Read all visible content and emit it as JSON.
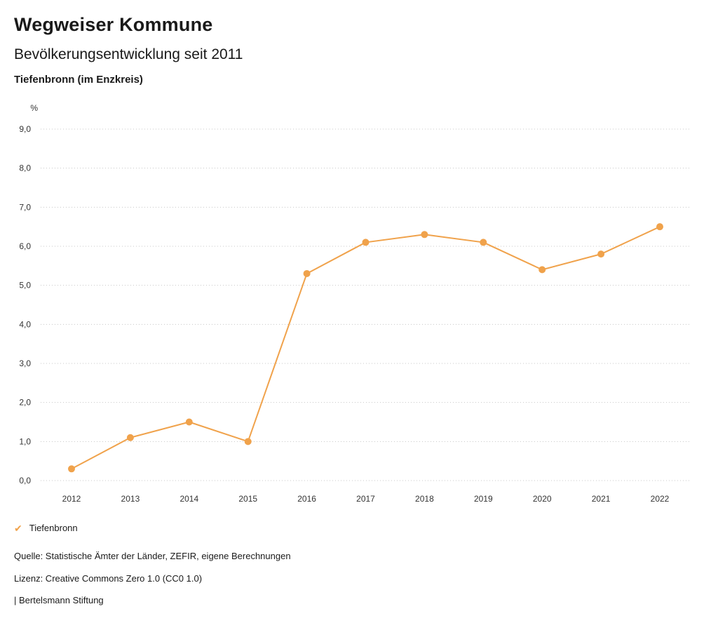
{
  "header": {
    "title": "Wegweiser Kommune",
    "subtitle": "Bevölkerungsentwicklung seit 2011",
    "region": "Tiefenbronn (im Enzkreis)"
  },
  "chart_data": {
    "type": "line",
    "title": "Bevölkerungsentwicklung seit 2011",
    "x": [
      2012,
      2013,
      2014,
      2015,
      2016,
      2017,
      2018,
      2019,
      2020,
      2021,
      2022
    ],
    "series": [
      {
        "name": "Tiefenbronn",
        "values": [
          0.3,
          1.1,
          1.5,
          1.0,
          5.3,
          6.1,
          6.3,
          6.1,
          5.4,
          5.8,
          6.5
        ],
        "color": "#F0A24B"
      }
    ],
    "xlabel": "",
    "ylabel": "%",
    "ylim": [
      0,
      9
    ],
    "ytick_step": 1,
    "ytick_labels": [
      "0,0",
      "1,0",
      "2,0",
      "3,0",
      "4,0",
      "5,0",
      "6,0",
      "7,0",
      "8,0",
      "9,0"
    ],
    "grid": "dotted-horizontal",
    "legend_position": "bottom-left"
  },
  "legend": {
    "marker": "check-icon",
    "label": "Tiefenbronn"
  },
  "footer": {
    "source": "Quelle: Statistische Ämter der Länder, ZEFIR, eigene Berechnungen",
    "license": "Lizenz: Creative Commons Zero 1.0 (CC0 1.0)",
    "attribution": "| Bertelsmann Stiftung"
  },
  "colors": {
    "accent": "#F0A24B",
    "grid": "#C8C8C8",
    "tick_text": "#333333",
    "text": "#1A1A1A"
  }
}
